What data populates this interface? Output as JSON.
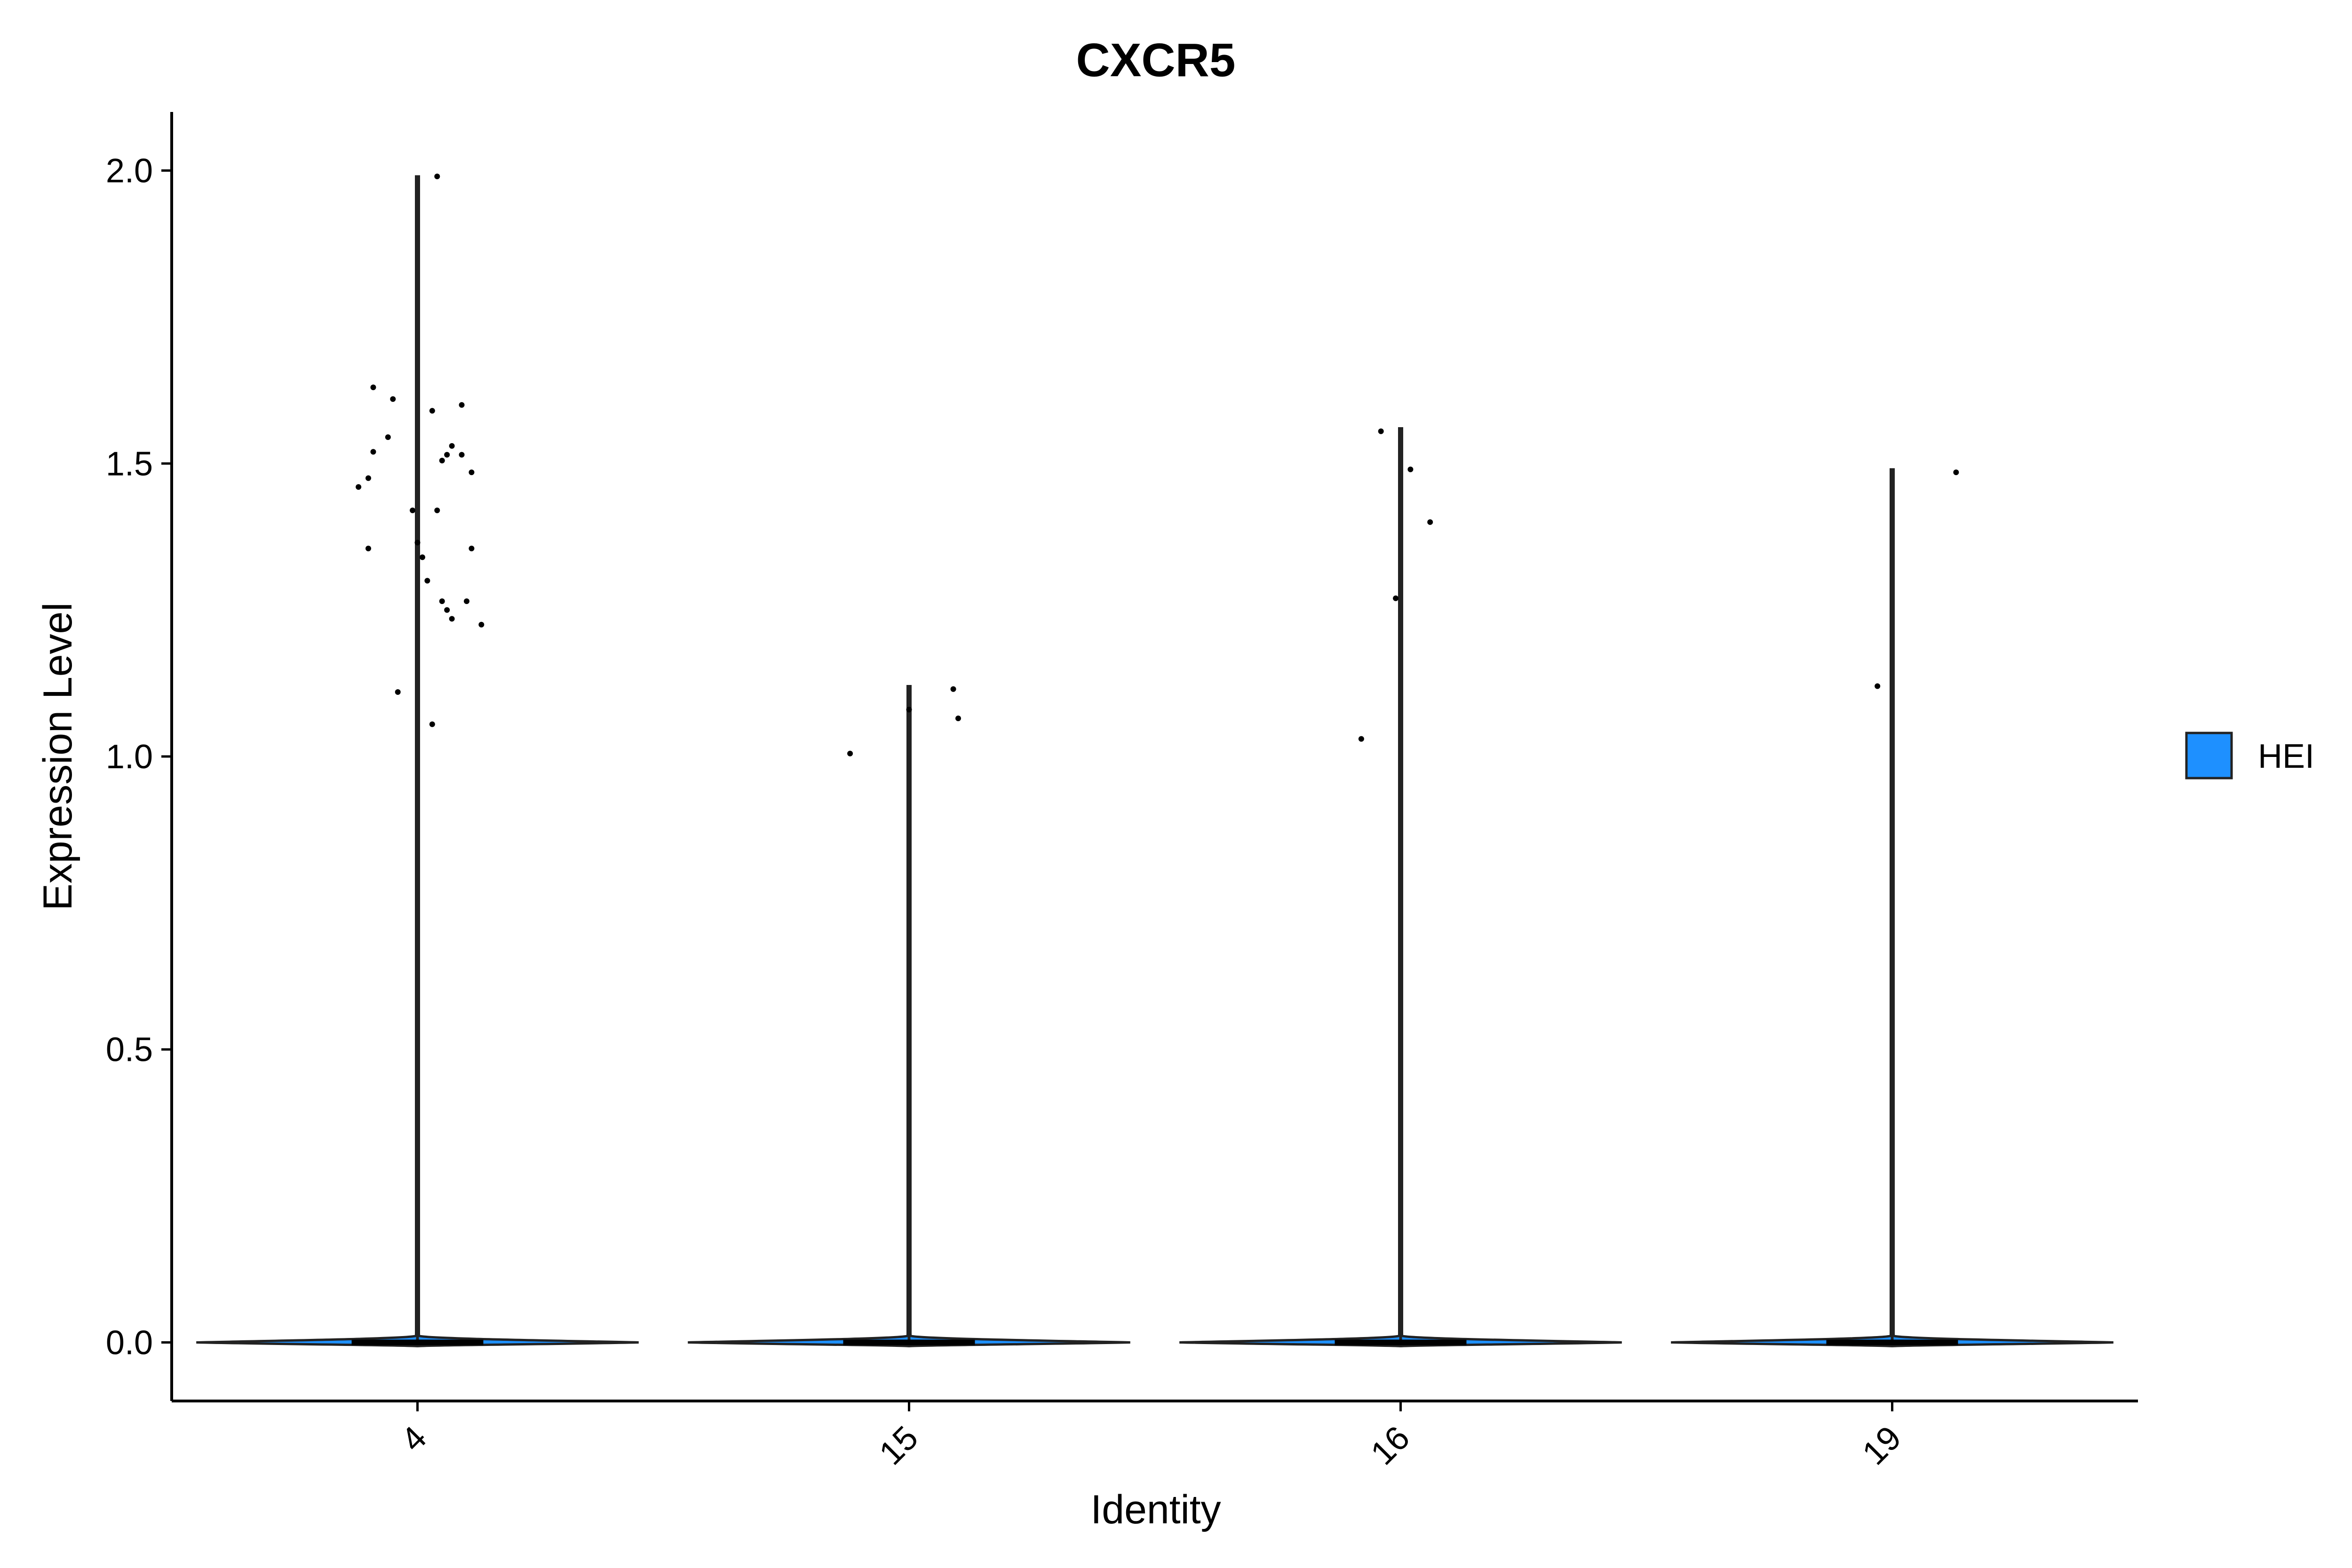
{
  "chart_data": {
    "type": "violin",
    "title": "CXCR5",
    "xlabel": "Identity",
    "ylabel": "Expression Level",
    "categories": [
      "4",
      "15",
      "16",
      "19"
    ],
    "ylim": [
      -0.1,
      2.1
    ],
    "yticks": [
      0.0,
      0.5,
      1.0,
      1.5,
      2.0
    ],
    "ytick_labels": [
      "0.0",
      "0.5",
      "1.0",
      "1.5",
      "2.0"
    ],
    "grid": false,
    "legend": {
      "position": "right",
      "entries": [
        {
          "label": "HEI",
          "color": "#1E90FF"
        }
      ]
    },
    "series": [
      {
        "name": "HEI",
        "color": "#1E90FF",
        "groups": [
          {
            "category": "4",
            "max": 1.99,
            "points": [
              {
                "x": 0.04,
                "y": 1.99
              },
              {
                "x": -0.09,
                "y": 1.63
              },
              {
                "x": -0.05,
                "y": 1.61
              },
              {
                "x": 0.09,
                "y": 1.6
              },
              {
                "x": 0.03,
                "y": 1.59
              },
              {
                "x": -0.06,
                "y": 1.545
              },
              {
                "x": 0.07,
                "y": 1.53
              },
              {
                "x": -0.09,
                "y": 1.52
              },
              {
                "x": 0.06,
                "y": 1.515
              },
              {
                "x": 0.09,
                "y": 1.515
              },
              {
                "x": 0.05,
                "y": 1.505
              },
              {
                "x": 0.11,
                "y": 1.485
              },
              {
                "x": -0.1,
                "y": 1.475
              },
              {
                "x": -0.12,
                "y": 1.46
              },
              {
                "x": -0.01,
                "y": 1.42
              },
              {
                "x": 0.04,
                "y": 1.42
              },
              {
                "x": 0.0,
                "y": 1.365
              },
              {
                "x": 0.11,
                "y": 1.355
              },
              {
                "x": -0.1,
                "y": 1.355
              },
              {
                "x": 0.01,
                "y": 1.34
              },
              {
                "x": 0.02,
                "y": 1.3
              },
              {
                "x": 0.05,
                "y": 1.265
              },
              {
                "x": 0.1,
                "y": 1.265
              },
              {
                "x": 0.06,
                "y": 1.25
              },
              {
                "x": 0.07,
                "y": 1.235
              },
              {
                "x": 0.13,
                "y": 1.225
              },
              {
                "x": -0.04,
                "y": 1.11
              },
              {
                "x": 0.03,
                "y": 1.055
              }
            ]
          },
          {
            "category": "15",
            "max": 1.12,
            "points": [
              {
                "x": 0.09,
                "y": 1.115
              },
              {
                "x": 0.0,
                "y": 1.08
              },
              {
                "x": 0.1,
                "y": 1.065
              },
              {
                "x": -0.12,
                "y": 1.005
              }
            ]
          },
          {
            "category": "16",
            "max": 1.56,
            "points": [
              {
                "x": -0.04,
                "y": 1.555
              },
              {
                "x": 0.02,
                "y": 1.49
              },
              {
                "x": 0.06,
                "y": 1.4
              },
              {
                "x": -0.01,
                "y": 1.27
              },
              {
                "x": -0.08,
                "y": 1.03
              }
            ]
          },
          {
            "category": "19",
            "max": 1.49,
            "points": [
              {
                "x": 0.13,
                "y": 1.485
              },
              {
                "x": -0.03,
                "y": 1.12
              }
            ]
          }
        ]
      }
    ]
  }
}
